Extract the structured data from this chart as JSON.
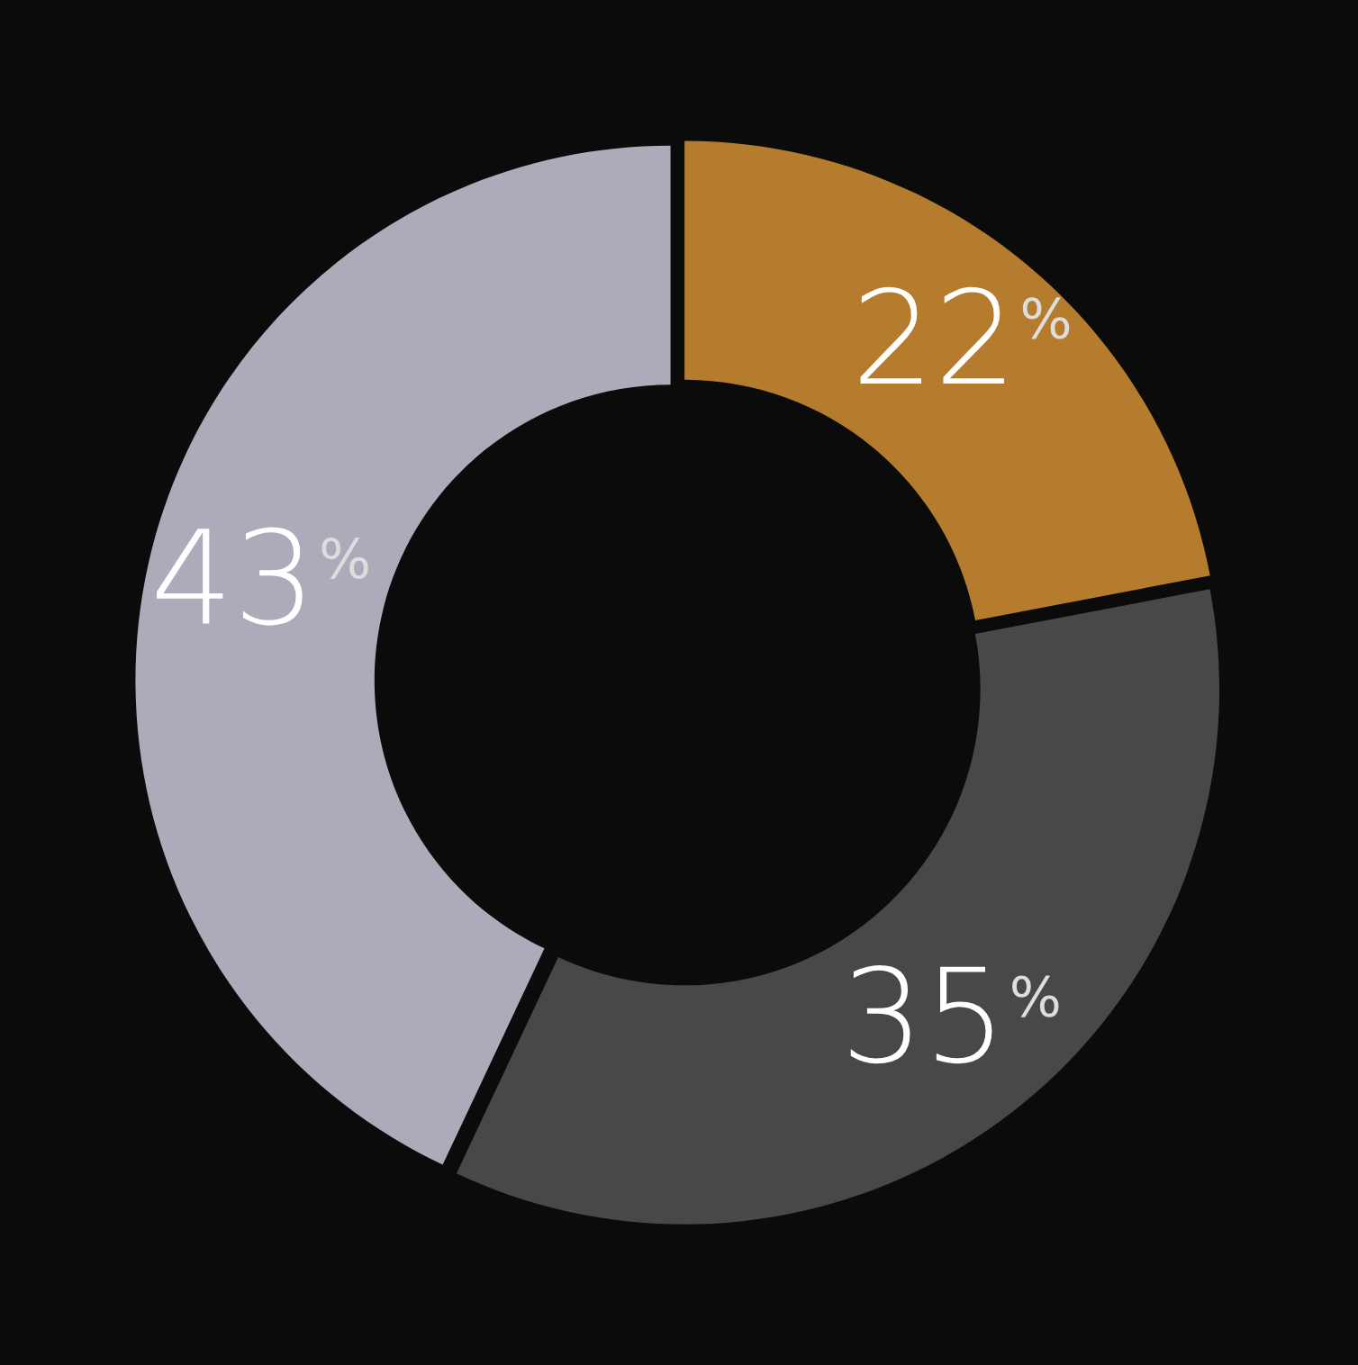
{
  "chart_data": {
    "type": "donut",
    "categories": [
      null,
      null,
      null
    ],
    "values": [
      22,
      35,
      43
    ],
    "colors": [
      "#b57c2e",
      "#484848",
      "#acabba"
    ],
    "value_labels": [
      "22$^{%}$",
      "35$^{%}$",
      "43$^{%}$"
    ]
  }
}
